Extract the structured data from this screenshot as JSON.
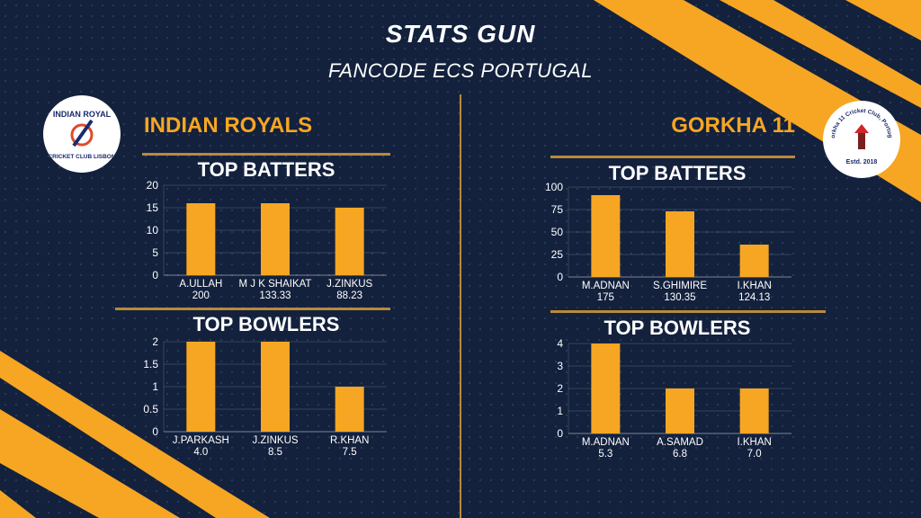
{
  "header": {
    "title": "STATS GUN",
    "subtitle": "FANCODE ECS PORTUGAL"
  },
  "teams": {
    "left": {
      "name": "INDIAN ROYALS",
      "logo_text_top": "INDIAN ROYAL",
      "logo_text_bottom": "CRICKET CLUB LISBON"
    },
    "right": {
      "name": "GORKHA 11",
      "logo_text_ring": "Gorkha 11 Cricket Club, Portugal",
      "logo_text_estd": "Estd. 2018"
    }
  },
  "sections": {
    "batters": "TOP BATTERS",
    "bowlers": "TOP BOWLERS"
  },
  "colors": {
    "bar": "#f6a623",
    "accent": "#f6a623",
    "background": "#13213d",
    "rule": "#b98a3a"
  },
  "chart_data": [
    {
      "type": "bar",
      "title": "TOP BATTERS",
      "team": "INDIAN ROYALS",
      "categories": [
        "A.ULLAH",
        "M J K SHAIKAT",
        "J.ZINKUS"
      ],
      "secondary_labels": [
        "200",
        "133.33",
        "88.23"
      ],
      "values": [
        16,
        16,
        15
      ],
      "ylim": [
        0,
        20
      ],
      "yticks": [
        "0",
        "5",
        "10",
        "15",
        "20"
      ],
      "grid": true
    },
    {
      "type": "bar",
      "title": "TOP BOWLERS",
      "team": "INDIAN ROYALS",
      "categories": [
        "J.PARKASH",
        "J.ZINKUS",
        "R.KHAN"
      ],
      "secondary_labels": [
        "4.0",
        "8.5",
        "7.5"
      ],
      "values": [
        2,
        2,
        1
      ],
      "ylim": [
        0,
        2
      ],
      "yticks": [
        "0",
        "0.5",
        "1",
        "1.5",
        "2"
      ],
      "grid": true
    },
    {
      "type": "bar",
      "title": "TOP BATTERS",
      "team": "GORKHA 11",
      "categories": [
        "M.ADNAN",
        "S.GHIMIRE",
        "I.KHAN"
      ],
      "secondary_labels": [
        "175",
        "130.35",
        "124.13"
      ],
      "values": [
        91,
        73,
        36
      ],
      "ylim": [
        0,
        100
      ],
      "yticks": [
        "0",
        "25",
        "50",
        "75",
        "100"
      ],
      "grid": true
    },
    {
      "type": "bar",
      "title": "TOP BOWLERS",
      "team": "GORKHA 11",
      "categories": [
        "M.ADNAN",
        "A.SAMAD",
        "I.KHAN"
      ],
      "secondary_labels": [
        "5.3",
        "6.8",
        "7.0"
      ],
      "values": [
        4,
        2,
        2
      ],
      "ylim": [
        0,
        4
      ],
      "yticks": [
        "0",
        "1",
        "2",
        "3",
        "4"
      ],
      "grid": true
    }
  ]
}
